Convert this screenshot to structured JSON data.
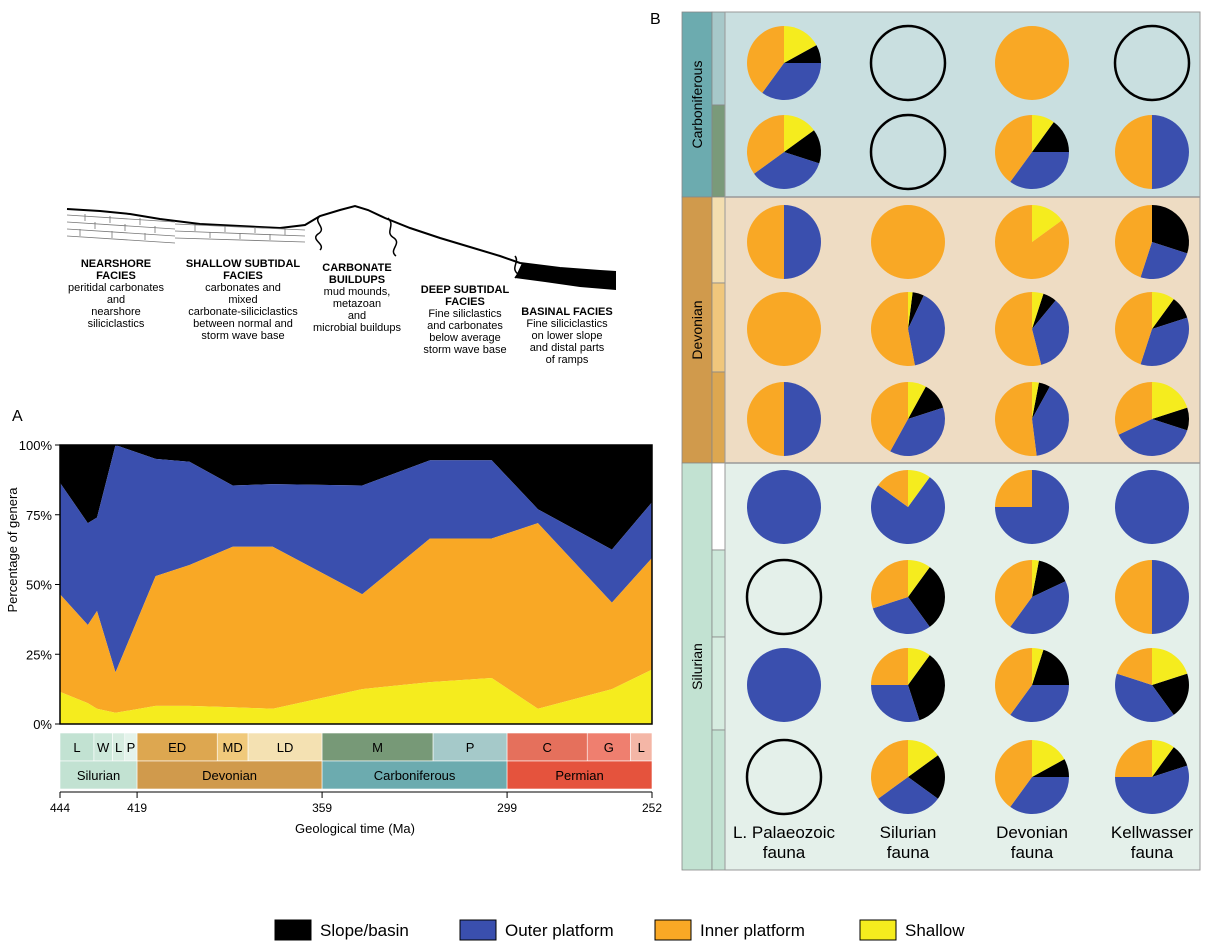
{
  "colors": {
    "slope_basin": "#000000",
    "outer_platform": "#3a4fae",
    "inner_platform": "#f9a825",
    "shallow": "#f5ec1e",
    "silurian": "#c2e2d2",
    "devonian": "#d09a4c",
    "carboniferous": "#6cabaf",
    "permian": "#e5533d",
    "panel_carb": "#c9dfe0",
    "panel_dev": "#eedcc3",
    "panel_sil": "#e4f0ea"
  },
  "facies": {
    "nearshore": {
      "title": [
        "NEARSHORE",
        "FACIES"
      ],
      "desc": [
        "peritidal carbonates",
        "and",
        "nearshore",
        "siliciclastics"
      ]
    },
    "shallow": {
      "title": [
        "SHALLOW SUBTIDAL",
        "FACIES"
      ],
      "desc": [
        "carbonates and",
        "mixed",
        "carbonate-siliciclastics",
        "between normal and",
        "storm wave base"
      ]
    },
    "buildups": {
      "title": [
        "CARBONATE",
        "BUILDUPS"
      ],
      "desc": [
        "mud mounds,",
        "metazoan",
        "and",
        "microbial buildups"
      ]
    },
    "deep": {
      "title": [
        "DEEP SUBTIDAL",
        "FACIES"
      ],
      "desc": [
        "Fine siliclastics",
        "and carbonates",
        "below average",
        "storm wave base"
      ]
    },
    "basinal": {
      "title": [
        "BASINAL FACIES"
      ],
      "desc": [
        "Fine siliciclastics",
        "on  lower slope",
        "and distal parts",
        "of ramps"
      ]
    }
  },
  "panel_a": {
    "label": "A",
    "chart_data": {
      "type": "area",
      "xlabel": "Geological time (Ma)",
      "ylabel": "Percentage of genera",
      "xlim": [
        444,
        252
      ],
      "ylim": [
        0,
        100
      ],
      "yticks": [
        "0%",
        "25%",
        "50%",
        "75%",
        "100%"
      ],
      "xticks": [
        444,
        419,
        359,
        299,
        252
      ],
      "x": [
        444,
        435,
        432,
        426,
        413,
        402,
        388,
        375,
        346,
        324,
        304,
        289,
        265,
        252
      ],
      "series": [
        {
          "name": "Shallow",
          "values": [
            11.5,
            7.5,
            5.5,
            4,
            6.5,
            6.5,
            6,
            5.5,
            12.5,
            15,
            16.5,
            5.5,
            12.5,
            19.5
          ]
        },
        {
          "name": "Inner platform",
          "values": [
            46.5,
            35.5,
            40.5,
            18.5,
            53,
            57,
            63.5,
            63.5,
            46.5,
            66.5,
            66.5,
            72,
            43.5,
            59.5
          ]
        },
        {
          "name": "Outer platform",
          "values": [
            86.5,
            72,
            74,
            100,
            95,
            94,
            85.5,
            86,
            85.5,
            94.5,
            94.5,
            77,
            62.5,
            79.5
          ]
        },
        {
          "name": "Slope/basin",
          "values": [
            100,
            100,
            100,
            100,
            100,
            100,
            100,
            100,
            100,
            100,
            100,
            100,
            100,
            100
          ]
        }
      ]
    },
    "stages": [
      {
        "label": "L",
        "from": 444,
        "to": 433,
        "color": "#c2e2d2"
      },
      {
        "label": "W",
        "from": 433,
        "to": 427,
        "color": "#cde8da"
      },
      {
        "label": "L",
        "from": 427,
        "to": 423,
        "color": "#d6ece0"
      },
      {
        "label": "P",
        "from": 423,
        "to": 419,
        "color": "#e4f3eb"
      },
      {
        "label": "ED",
        "from": 419,
        "to": 393,
        "color": "#dda750"
      },
      {
        "label": "MD",
        "from": 393,
        "to": 383,
        "color": "#f0c97b"
      },
      {
        "label": "LD",
        "from": 383,
        "to": 359,
        "color": "#f4e1b2"
      },
      {
        "label": "M",
        "from": 359,
        "to": 323,
        "color": "#779977"
      },
      {
        "label": "P",
        "from": 323,
        "to": 299,
        "color": "#a5c9c9"
      },
      {
        "label": "C",
        "from": 299,
        "to": 273,
        "color": "#e5705c"
      },
      {
        "label": "G",
        "from": 273,
        "to": 259,
        "color": "#ef7f6f"
      },
      {
        "label": "L",
        "from": 259,
        "to": 252,
        "color": "#f4b6a6"
      }
    ],
    "periods": [
      {
        "label": "Silurian",
        "from": 444,
        "to": 419,
        "color": "#c2e2d2"
      },
      {
        "label": "Devonian",
        "from": 419,
        "to": 359,
        "color": "#d09a4c"
      },
      {
        "label": "Carboniferous",
        "from": 359,
        "to": 299,
        "color": "#6cabaf"
      },
      {
        "label": "Permian",
        "from": 299,
        "to": 252,
        "color": "#e5533d"
      }
    ]
  },
  "panel_b": {
    "label": "B",
    "periods": [
      "Carboniferous",
      "Devonian",
      "Silurian"
    ],
    "columns": [
      [
        "L. Palaeozoic",
        "fauna"
      ],
      [
        "Silurian",
        "fauna"
      ],
      [
        "Devonian",
        "fauna"
      ],
      [
        "Kellwasser",
        "fauna"
      ]
    ],
    "pies": [
      [
        [
          8,
          35,
          40,
          17
        ],
        null,
        [
          0,
          0,
          100,
          0
        ],
        null
      ],
      [
        [
          15,
          35,
          35,
          15
        ],
        null,
        [
          15,
          35,
          40,
          10
        ],
        [
          0,
          50,
          50,
          0
        ]
      ],
      [
        [
          0,
          50,
          50,
          0
        ],
        [
          0,
          0,
          100,
          0
        ],
        [
          0,
          0,
          85,
          15
        ],
        [
          30,
          25,
          45,
          0
        ]
      ],
      [
        [
          0,
          0,
          100,
          0
        ],
        [
          5,
          40,
          53,
          2
        ],
        [
          6,
          35,
          54,
          5
        ],
        [
          10,
          35,
          45,
          10
        ]
      ],
      [
        [
          0,
          50,
          50,
          0
        ],
        [
          12,
          38,
          42,
          8
        ],
        [
          5,
          40,
          52,
          3
        ],
        [
          10,
          38,
          32,
          20
        ]
      ],
      [
        [
          0,
          100,
          0,
          0
        ],
        [
          0,
          75,
          15,
          10
        ],
        [
          0,
          75,
          25,
          0
        ],
        [
          0,
          100,
          0,
          0
        ]
      ],
      [
        null,
        [
          30,
          30,
          30,
          10
        ],
        [
          15,
          42,
          40,
          3
        ],
        [
          0,
          50,
          50,
          0
        ]
      ],
      [
        [
          0,
          100,
          0,
          0
        ],
        [
          35,
          30,
          25,
          10
        ],
        [
          20,
          35,
          40,
          5
        ],
        [
          20,
          40,
          20,
          20
        ]
      ],
      [
        null,
        [
          20,
          30,
          35,
          15
        ],
        [
          8,
          35,
          40,
          17
        ],
        [
          10,
          55,
          25,
          10
        ]
      ]
    ]
  },
  "legend": [
    {
      "label": "Slope/basin",
      "color": "#000000"
    },
    {
      "label": "Outer platform",
      "color": "#3a4fae"
    },
    {
      "label": "Inner platform",
      "color": "#f9a825"
    },
    {
      "label": "Shallow",
      "color": "#f5ec1e"
    }
  ]
}
